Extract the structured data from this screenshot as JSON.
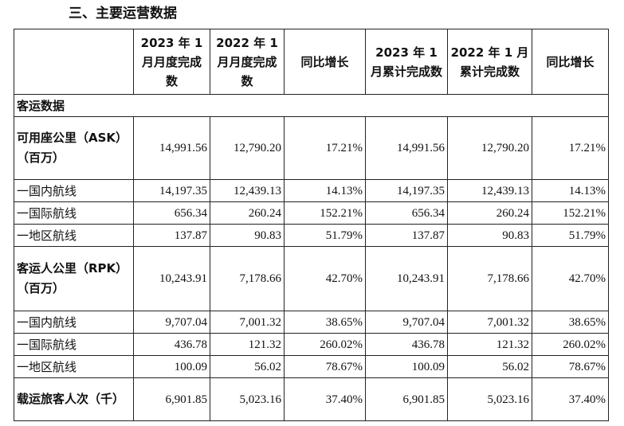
{
  "section_title": "三、主要运营数据",
  "headers": [
    "",
    "2023 年 1 月月度完成数",
    "2022 年 1 月月度完成数",
    "同比增长",
    "2023 年 1 月累计完成数",
    "2022 年 1 月累计完成数",
    "同比增长"
  ],
  "section_label": "客运数据",
  "rows": [
    {
      "label": "可用座公里（ASK）（百万）",
      "values": [
        "14,991.56",
        "12,790.20",
        "17.21%",
        "14,991.56",
        "12,790.20",
        "17.21%"
      ]
    },
    {
      "label": "一国内航线",
      "values": [
        "14,197.35",
        "12,439.13",
        "14.13%",
        "14,197.35",
        "12,439.13",
        "14.13%"
      ]
    },
    {
      "label": "一国际航线",
      "values": [
        "656.34",
        "260.24",
        "152.21%",
        "656.34",
        "260.24",
        "152.21%"
      ]
    },
    {
      "label": "一地区航线",
      "values": [
        "137.87",
        "90.83",
        "51.79%",
        "137.87",
        "90.83",
        "51.79%"
      ]
    },
    {
      "label": "客运人公里（RPK）（百万）",
      "values": [
        "10,243.91",
        "7,178.66",
        "42.70%",
        "10,243.91",
        "7,178.66",
        "42.70%"
      ]
    },
    {
      "label": "一国内航线",
      "values": [
        "9,707.04",
        "7,001.32",
        "38.65%",
        "9,707.04",
        "7,001.32",
        "38.65%"
      ]
    },
    {
      "label": "一国际航线",
      "values": [
        "436.78",
        "121.32",
        "260.02%",
        "436.78",
        "121.32",
        "260.02%"
      ]
    },
    {
      "label": "一地区航线",
      "values": [
        "100.09",
        "56.02",
        "78.67%",
        "100.09",
        "56.02",
        "78.67%"
      ]
    },
    {
      "label": "载运旅客人次（千）",
      "values": [
        "6,901.85",
        "5,023.16",
        "37.40%",
        "6,901.85",
        "5,023.16",
        "37.40%"
      ]
    }
  ]
}
